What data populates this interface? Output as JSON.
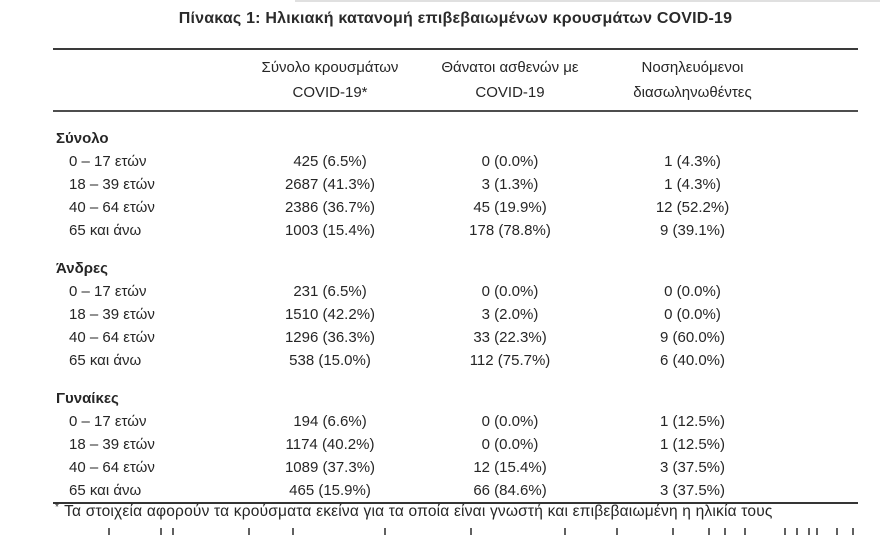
{
  "page": {
    "title": "Πίνακας 1: Ηλικιακή κατανομή επιβεβαιωμένων κρουσμάτων COVID-19"
  },
  "table": {
    "columns": [
      "",
      "Σύνολο κρουσμάτων\nCOVID-19*",
      "Θάνατοι ασθενών με\nCOVID-19",
      "Νοσηλευόμενοι\nδιασωληνωθέντες"
    ],
    "sections": [
      {
        "label": "Σύνολο",
        "rows": [
          {
            "label": "0 – 17 ετών",
            "cells": [
              "425 (6.5%)",
              "0 (0.0%)",
              "1 (4.3%)"
            ]
          },
          {
            "label": "18 – 39 ετών",
            "cells": [
              "2687 (41.3%)",
              "3 (1.3%)",
              "1 (4.3%)"
            ]
          },
          {
            "label": "40 – 64 ετών",
            "cells": [
              "2386 (36.7%)",
              "45 (19.9%)",
              "12 (52.2%)"
            ]
          },
          {
            "label": "65 και άνω",
            "cells": [
              "1003 (15.4%)",
              "178 (78.8%)",
              "9 (39.1%)"
            ]
          }
        ]
      },
      {
        "label": "Άνδρες",
        "rows": [
          {
            "label": "0 – 17 ετών",
            "cells": [
              "231 (6.5%)",
              "0 (0.0%)",
              "0 (0.0%)"
            ]
          },
          {
            "label": "18 – 39 ετών",
            "cells": [
              "1510 (42.2%)",
              "3 (2.0%)",
              "0 (0.0%)"
            ]
          },
          {
            "label": "40 – 64 ετών",
            "cells": [
              "1296 (36.3%)",
              "33 (22.3%)",
              "9 (60.0%)"
            ]
          },
          {
            "label": "65 και άνω",
            "cells": [
              "538 (15.0%)",
              "112 (75.7%)",
              "6 (40.0%)"
            ]
          }
        ]
      },
      {
        "label": "Γυναίκες",
        "rows": [
          {
            "label": "0 – 17 ετών",
            "cells": [
              "194 (6.6%)",
              "0 (0.0%)",
              "1 (12.5%)"
            ]
          },
          {
            "label": "18 – 39 ετών",
            "cells": [
              "1174 (40.2%)",
              "0 (0.0%)",
              "1 (12.5%)"
            ]
          },
          {
            "label": "40 – 64 ετών",
            "cells": [
              "1089 (37.3%)",
              "12 (15.4%)",
              "3 (37.5%)"
            ]
          },
          {
            "label": "65 και άνω",
            "cells": [
              "465 (15.9%)",
              "66 (84.6%)",
              "3 (37.5%)"
            ]
          }
        ]
      }
    ],
    "footnote_marker": "*",
    "footnote": "Τα στοιχεία αφορούν τα κρούσματα εκείνα για τα οποία είναι γνωστή και επιβεβαιωμένη η ηλικία τους"
  },
  "colors": {
    "background": "#ffffff",
    "text": "#262626",
    "rule_dark": "#3a3a3a",
    "rule_mid": "#4e4e4e"
  },
  "artifacts": {
    "bottom_tick_x": [
      108,
      160,
      172,
      248,
      292,
      384,
      470,
      564,
      616,
      672,
      708,
      724,
      744,
      784,
      796,
      808,
      816,
      836,
      852
    ]
  }
}
